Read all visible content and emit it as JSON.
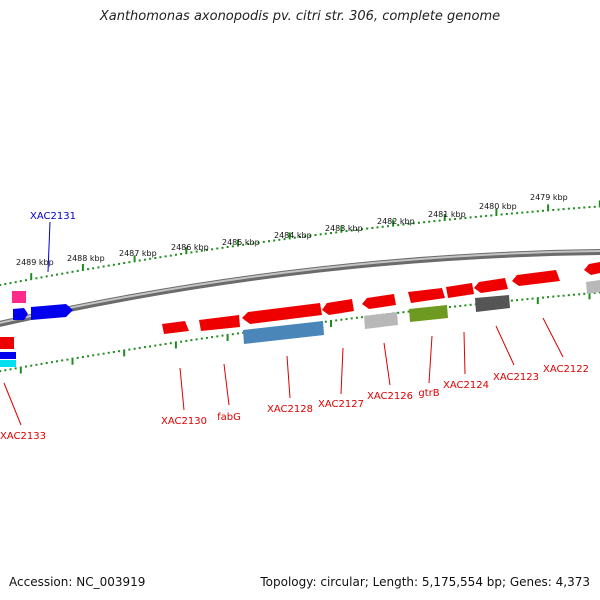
{
  "header": {
    "title": "Xanthomonas axonopodis pv. citri str. 306, complete genome"
  },
  "footer": {
    "accession": "Accession: NC_003919",
    "summary": "Topology: circular; Length: 5,175,554 bp; Genes: 4,373"
  },
  "colors": {
    "backbone": "#8a8a8a",
    "tick": "#1e8c1e",
    "gene_red": "#ee0000",
    "gene_blue": "#0000ee",
    "gene_steel": "#4a86b8",
    "gene_olive": "#6e9a22",
    "gene_gray": "#b8b8b8",
    "gene_dark": "#555555",
    "gene_pink": "#ff2a8a",
    "gene_cyan": "#00e0f0",
    "label_red": "#dd0000",
    "label_blue": "#0000cc"
  },
  "kbp_labels": [
    "2489 kbp",
    "2488 kbp",
    "2487 kbp",
    "2486 kbp",
    "2485 kbp",
    "2484 kbp",
    "2483 kbp",
    "2482 kbp",
    "2481 kbp",
    "2480 kbp",
    "2479 kbp"
  ],
  "gene_labels": [
    {
      "text": "XAC2131",
      "color": "blue"
    },
    {
      "text": "XAC2133",
      "color": "red"
    },
    {
      "text": "XAC2130",
      "color": "red"
    },
    {
      "text": "fabG",
      "color": "red"
    },
    {
      "text": "XAC2128",
      "color": "red"
    },
    {
      "text": "XAC2127",
      "color": "red"
    },
    {
      "text": "XAC2126",
      "color": "red"
    },
    {
      "text": "gtrB",
      "color": "red"
    },
    {
      "text": "XAC2124",
      "color": "red"
    },
    {
      "text": "XAC2123",
      "color": "red"
    },
    {
      "text": "XAC2122",
      "color": "red"
    }
  ]
}
